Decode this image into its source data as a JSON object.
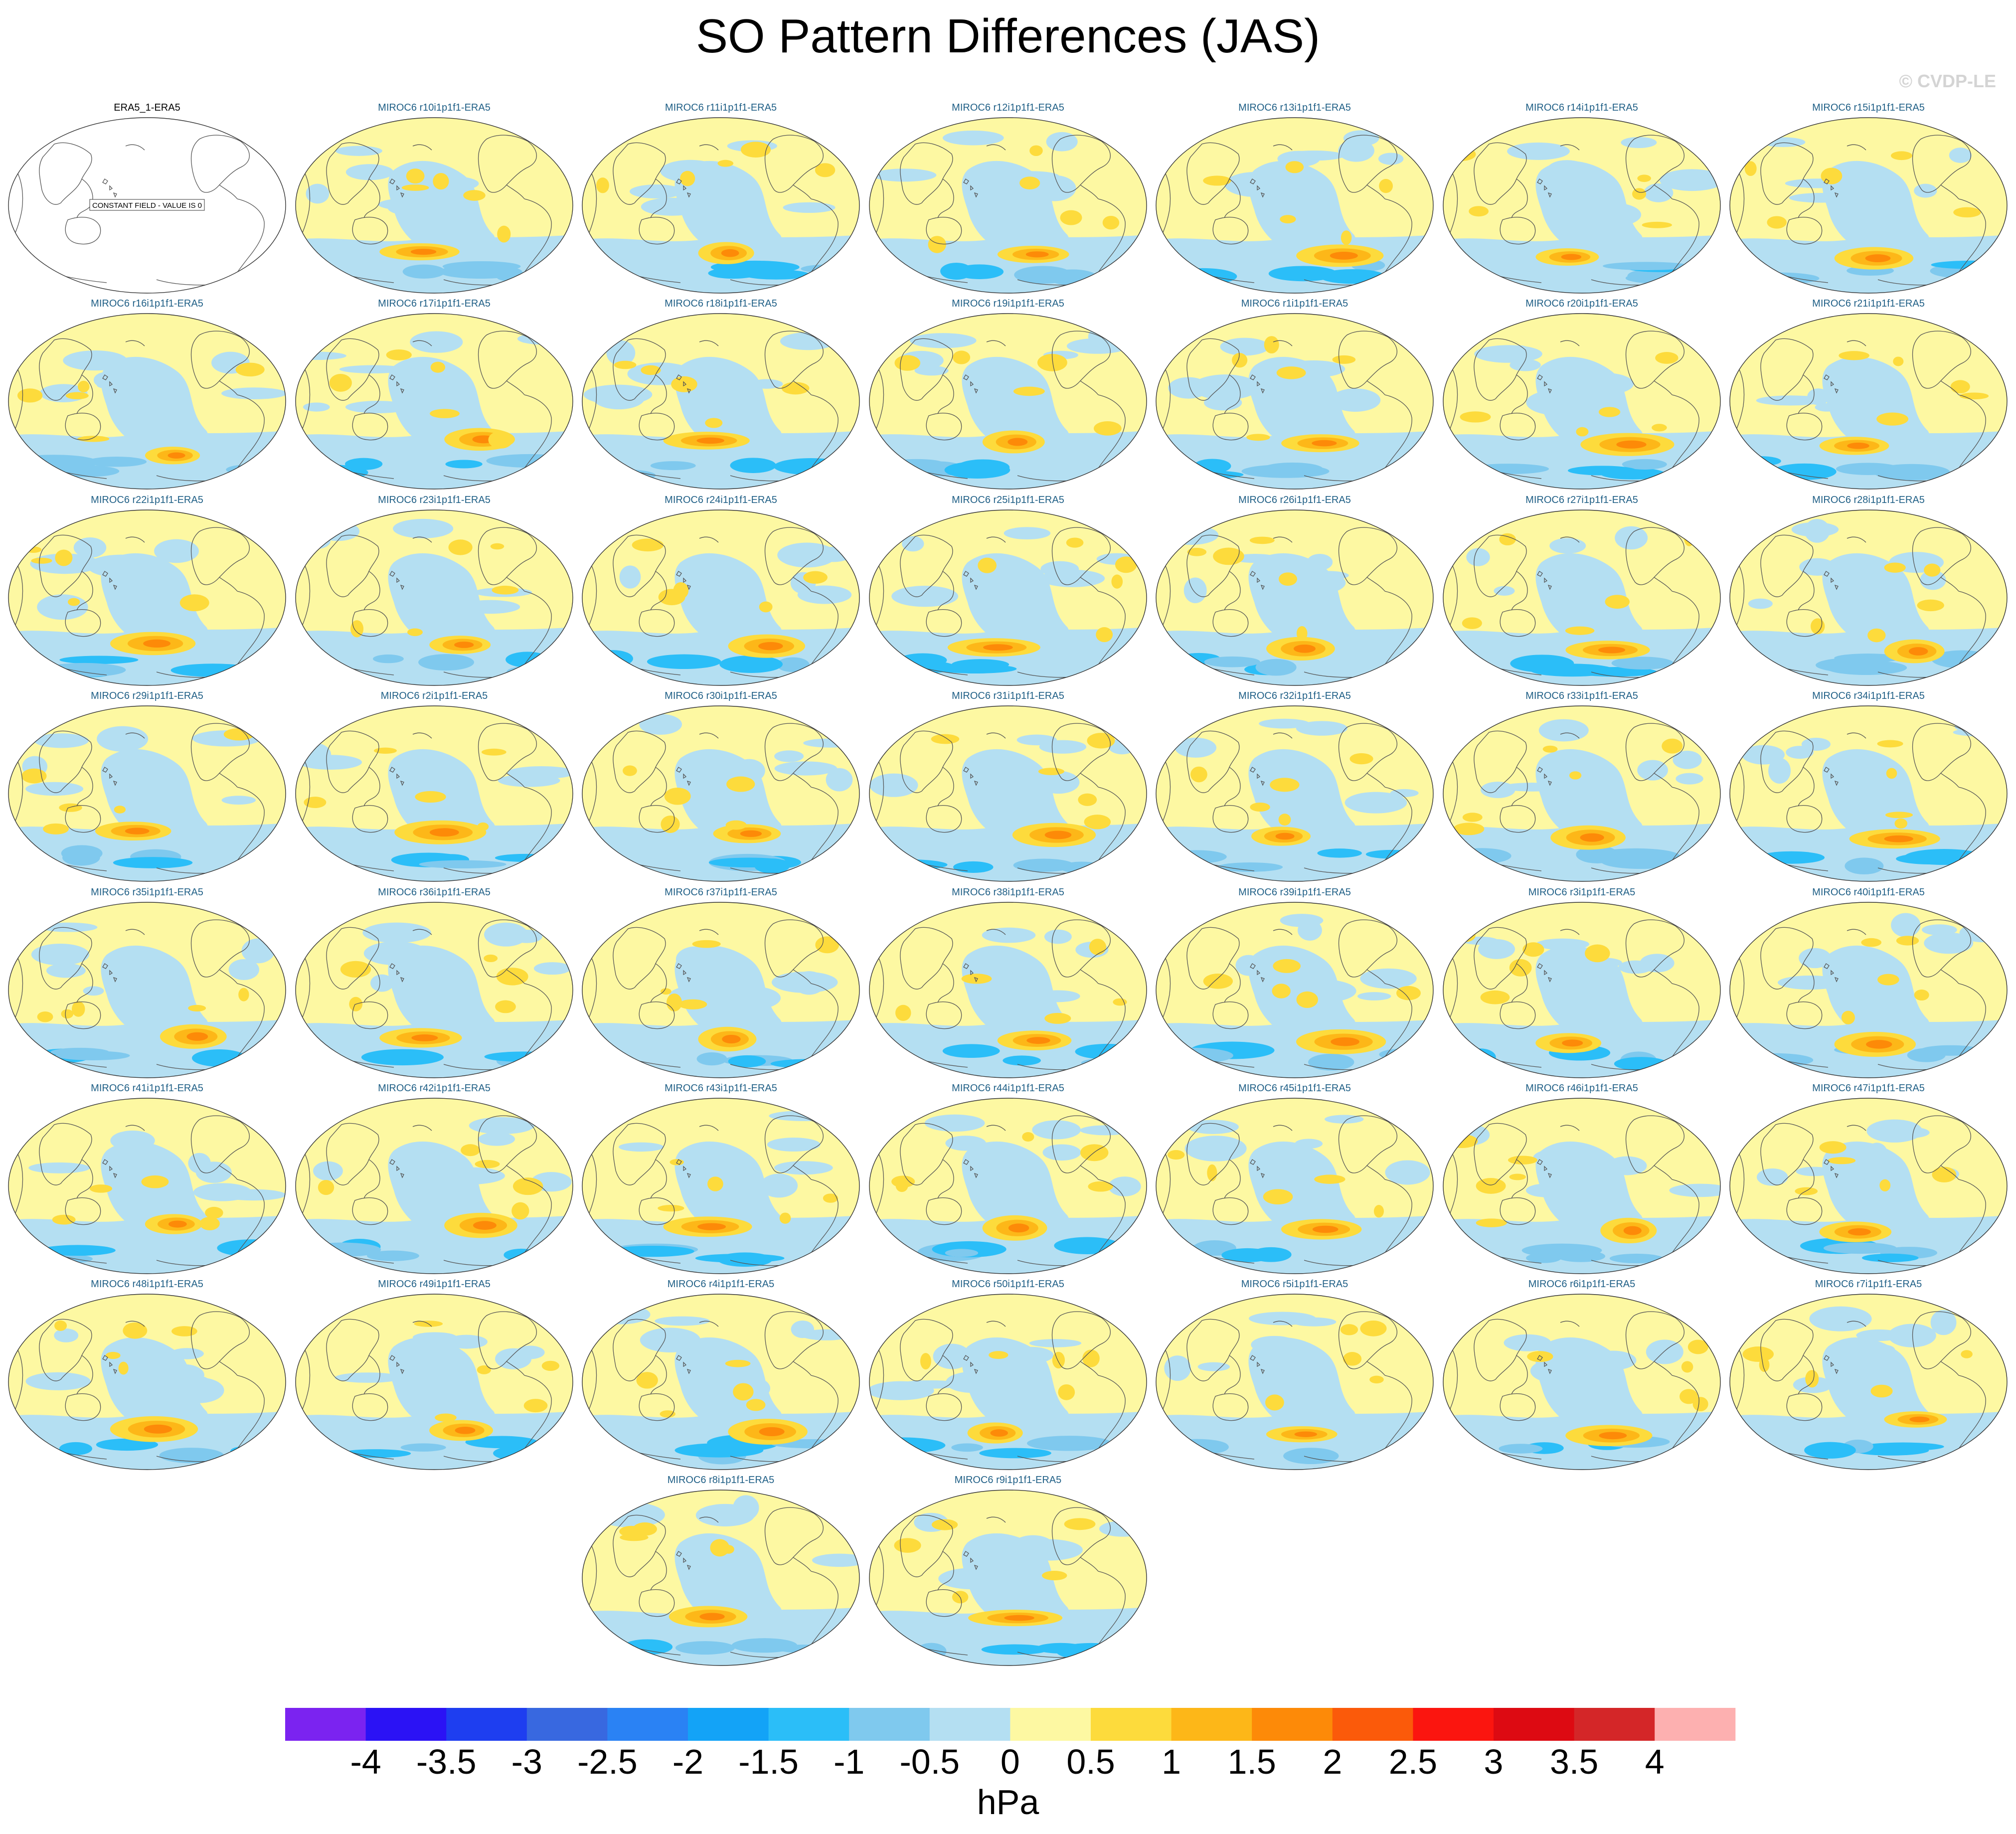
{
  "title": "SO Pattern Differences (JAS)",
  "watermark": "© CVDP-LE",
  "obs_panel": {
    "title": "ERA5_1-ERA5",
    "note": "CONSTANT FIELD - VALUE IS 0"
  },
  "model_panels": [
    "MIROC6 r10i1p1f1-ERA5",
    "MIROC6 r11i1p1f1-ERA5",
    "MIROC6 r12i1p1f1-ERA5",
    "MIROC6 r13i1p1f1-ERA5",
    "MIROC6 r14i1p1f1-ERA5",
    "MIROC6 r15i1p1f1-ERA5",
    "MIROC6 r16i1p1f1-ERA5",
    "MIROC6 r17i1p1f1-ERA5",
    "MIROC6 r18i1p1f1-ERA5",
    "MIROC6 r19i1p1f1-ERA5",
    "MIROC6 r1i1p1f1-ERA5",
    "MIROC6 r20i1p1f1-ERA5",
    "MIROC6 r21i1p1f1-ERA5",
    "MIROC6 r22i1p1f1-ERA5",
    "MIROC6 r23i1p1f1-ERA5",
    "MIROC6 r24i1p1f1-ERA5",
    "MIROC6 r25i1p1f1-ERA5",
    "MIROC6 r26i1p1f1-ERA5",
    "MIROC6 r27i1p1f1-ERA5",
    "MIROC6 r28i1p1f1-ERA5",
    "MIROC6 r29i1p1f1-ERA5",
    "MIROC6 r2i1p1f1-ERA5",
    "MIROC6 r30i1p1f1-ERA5",
    "MIROC6 r31i1p1f1-ERA5",
    "MIROC6 r32i1p1f1-ERA5",
    "MIROC6 r33i1p1f1-ERA5",
    "MIROC6 r34i1p1f1-ERA5",
    "MIROC6 r35i1p1f1-ERA5",
    "MIROC6 r36i1p1f1-ERA5",
    "MIROC6 r37i1p1f1-ERA5",
    "MIROC6 r38i1p1f1-ERA5",
    "MIROC6 r39i1p1f1-ERA5",
    "MIROC6 r3i1p1f1-ERA5",
    "MIROC6 r40i1p1f1-ERA5",
    "MIROC6 r41i1p1f1-ERA5",
    "MIROC6 r42i1p1f1-ERA5",
    "MIROC6 r43i1p1f1-ERA5",
    "MIROC6 r44i1p1f1-ERA5",
    "MIROC6 r45i1p1f1-ERA5",
    "MIROC6 r46i1p1f1-ERA5",
    "MIROC6 r47i1p1f1-ERA5",
    "MIROC6 r48i1p1f1-ERA5",
    "MIROC6 r49i1p1f1-ERA5",
    "MIROC6 r4i1p1f1-ERA5",
    "MIROC6 r50i1p1f1-ERA5",
    "MIROC6 r5i1p1f1-ERA5",
    "MIROC6 r6i1p1f1-ERA5",
    "MIROC6 r7i1p1f1-ERA5",
    "MIROC6 r8i1p1f1-ERA5",
    "MIROC6 r9i1p1f1-ERA5"
  ],
  "colorbar": {
    "units": "hPa",
    "labels": [
      "-4",
      "-3.5",
      "-3",
      "-2.5",
      "-2",
      "-1.5",
      "-1",
      "-0.5",
      "0",
      "0.5",
      "1",
      "1.5",
      "2",
      "2.5",
      "3",
      "3.5",
      "4"
    ],
    "colors": [
      "#7b23f0",
      "#2b12f5",
      "#1e3ef0",
      "#3868e0",
      "#2a82f4",
      "#13a3f7",
      "#2bbef8",
      "#7fc9ee",
      "#b4dff2",
      "#fdf8a2",
      "#fddb3c",
      "#fdb718",
      "#fd8a08",
      "#fb5a0a",
      "#fb150f",
      "#dd0a12",
      "#d42628",
      "#fdb0b0"
    ]
  }
}
